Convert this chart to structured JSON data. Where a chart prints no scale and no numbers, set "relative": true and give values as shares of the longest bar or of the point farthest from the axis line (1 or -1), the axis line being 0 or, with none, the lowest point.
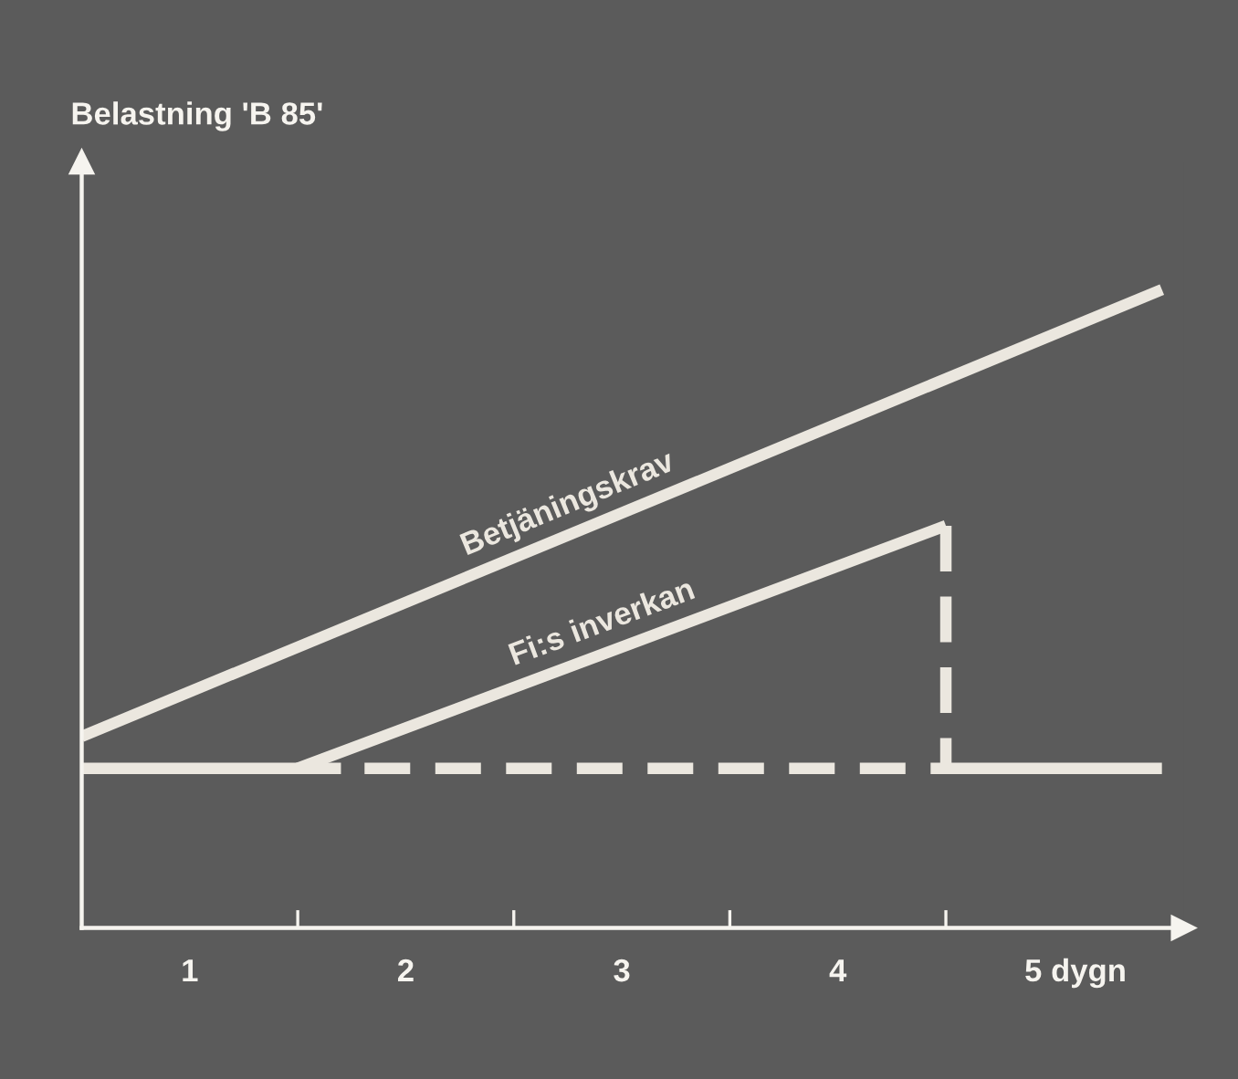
{
  "chart_data": {
    "type": "line",
    "relative": true,
    "ylabel": "Belastning 'B 85'",
    "xlim": [
      0,
      5.1
    ],
    "xticks": [
      {
        "value": 1,
        "label": null
      },
      {
        "value": 2,
        "label": null
      },
      {
        "value": 3,
        "label": null
      },
      {
        "value": 4,
        "label": null
      },
      {
        "value": 0.5,
        "label": "1"
      },
      {
        "value": 1.5,
        "label": "2"
      },
      {
        "value": 2.5,
        "label": "3"
      },
      {
        "value": 3.5,
        "label": "4"
      },
      {
        "value": 4.6,
        "label": "5 dygn"
      }
    ],
    "grid": false,
    "legend": false,
    "tick_labels": "x",
    "marker": "none",
    "series": [
      {
        "name": "Betjäningskrav",
        "color": "#ebe7df",
        "x": [
          0,
          5
        ],
        "values": [
          0.3,
          1.0
        ],
        "line_style": "solid"
      },
      {
        "name": "Fi:s inverkan",
        "color": "#ebe7df",
        "x": [
          1,
          4
        ],
        "values": [
          0.25,
          0.63
        ],
        "line_style": "solid"
      },
      {
        "color": "#ebe7df",
        "x": [
          4,
          4,
          1.2
        ],
        "values": [
          0.63,
          0.25,
          0.25
        ],
        "line_style": "dashed"
      },
      {
        "color": "#ebe7df",
        "x": [
          0,
          1.2
        ],
        "values": [
          0.25,
          0.25
        ],
        "line_style": "solid"
      },
      {
        "color": "#ebe7df",
        "x": [
          4,
          5
        ],
        "values": [
          0.25,
          0.25
        ],
        "line_style": "solid"
      }
    ]
  }
}
